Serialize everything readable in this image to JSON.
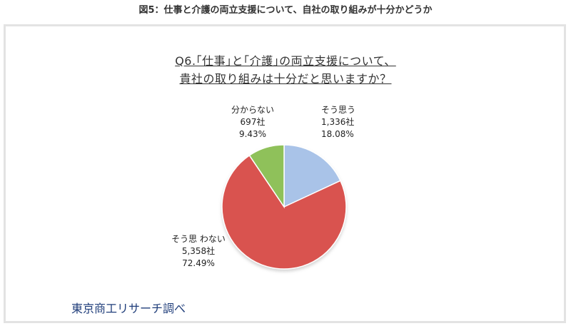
{
  "caption": "図5：仕事と介護の両立支援について、自社の取り組みが十分かどうか",
  "chart_data": {
    "type": "pie",
    "title_line1": "Q6.｢仕事｣と｢介護｣の両立支援について、",
    "title_line2": "貴社の取り組みは十分だと思いますか？",
    "series": [
      {
        "name": "そう思う",
        "count": "1,336社",
        "percent_label": "18.08%",
        "value": 18.08,
        "color": "#a9c3e8"
      },
      {
        "name": "そう思 わない",
        "count": "5,358社",
        "percent_label": "72.49%",
        "value": 72.49,
        "color": "#d9534f"
      },
      {
        "name": "分からない",
        "count": "697社",
        "percent_label": "9.43%",
        "value": 9.43,
        "color": "#8fc15a"
      }
    ]
  },
  "credit": "東京商工リサーチ調べ"
}
